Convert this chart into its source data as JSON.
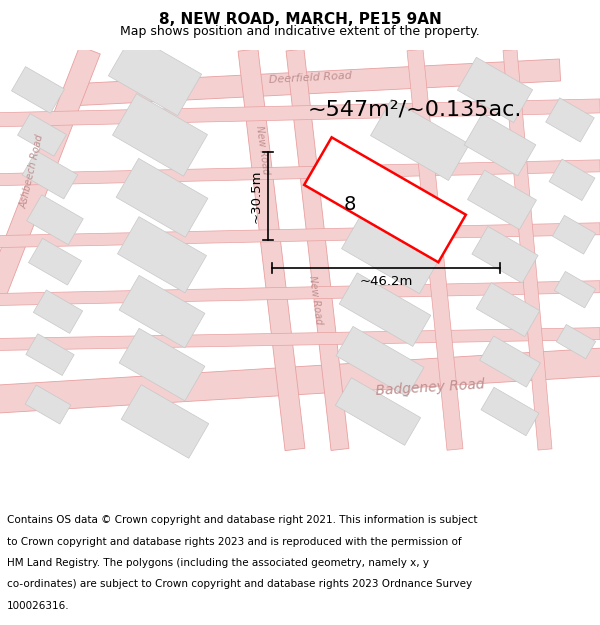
{
  "title": "8, NEW ROAD, MARCH, PE15 9AN",
  "subtitle": "Map shows position and indicative extent of the property.",
  "area_label": "~547m²/~0.135ac.",
  "number_label": "8",
  "width_label": "~46.2m",
  "height_label": "~30.5m",
  "map_bg": "#ffffff",
  "road_fill": "#f5d0d0",
  "road_edge": "#e8a0a0",
  "building_fill": "#e0e0e0",
  "building_edge": "#c8c8c8",
  "prop_fill": "#ffffff",
  "prop_edge": "#ff0000",
  "road_label_color": "#c09090",
  "dim_color": "#000000",
  "title_color": "#000000",
  "footer_color": "#000000",
  "title_fontsize": 11,
  "subtitle_fontsize": 9,
  "footer_fontsize": 7.5,
  "area_fontsize": 16,
  "number_fontsize": 14,
  "dim_fontsize": 9.5,
  "road_label_fontsize": 8,
  "footer_lines": [
    "Contains OS data © Crown copyright and database right 2021. This information is subject",
    "to Crown copyright and database rights 2023 and is reproduced with the permission of",
    "HM Land Registry. The polygons (including the associated geometry, namely x, y",
    "co-ordinates) are subject to Crown copyright and database rights 2023 Ordnance Survey",
    "100026316."
  ]
}
